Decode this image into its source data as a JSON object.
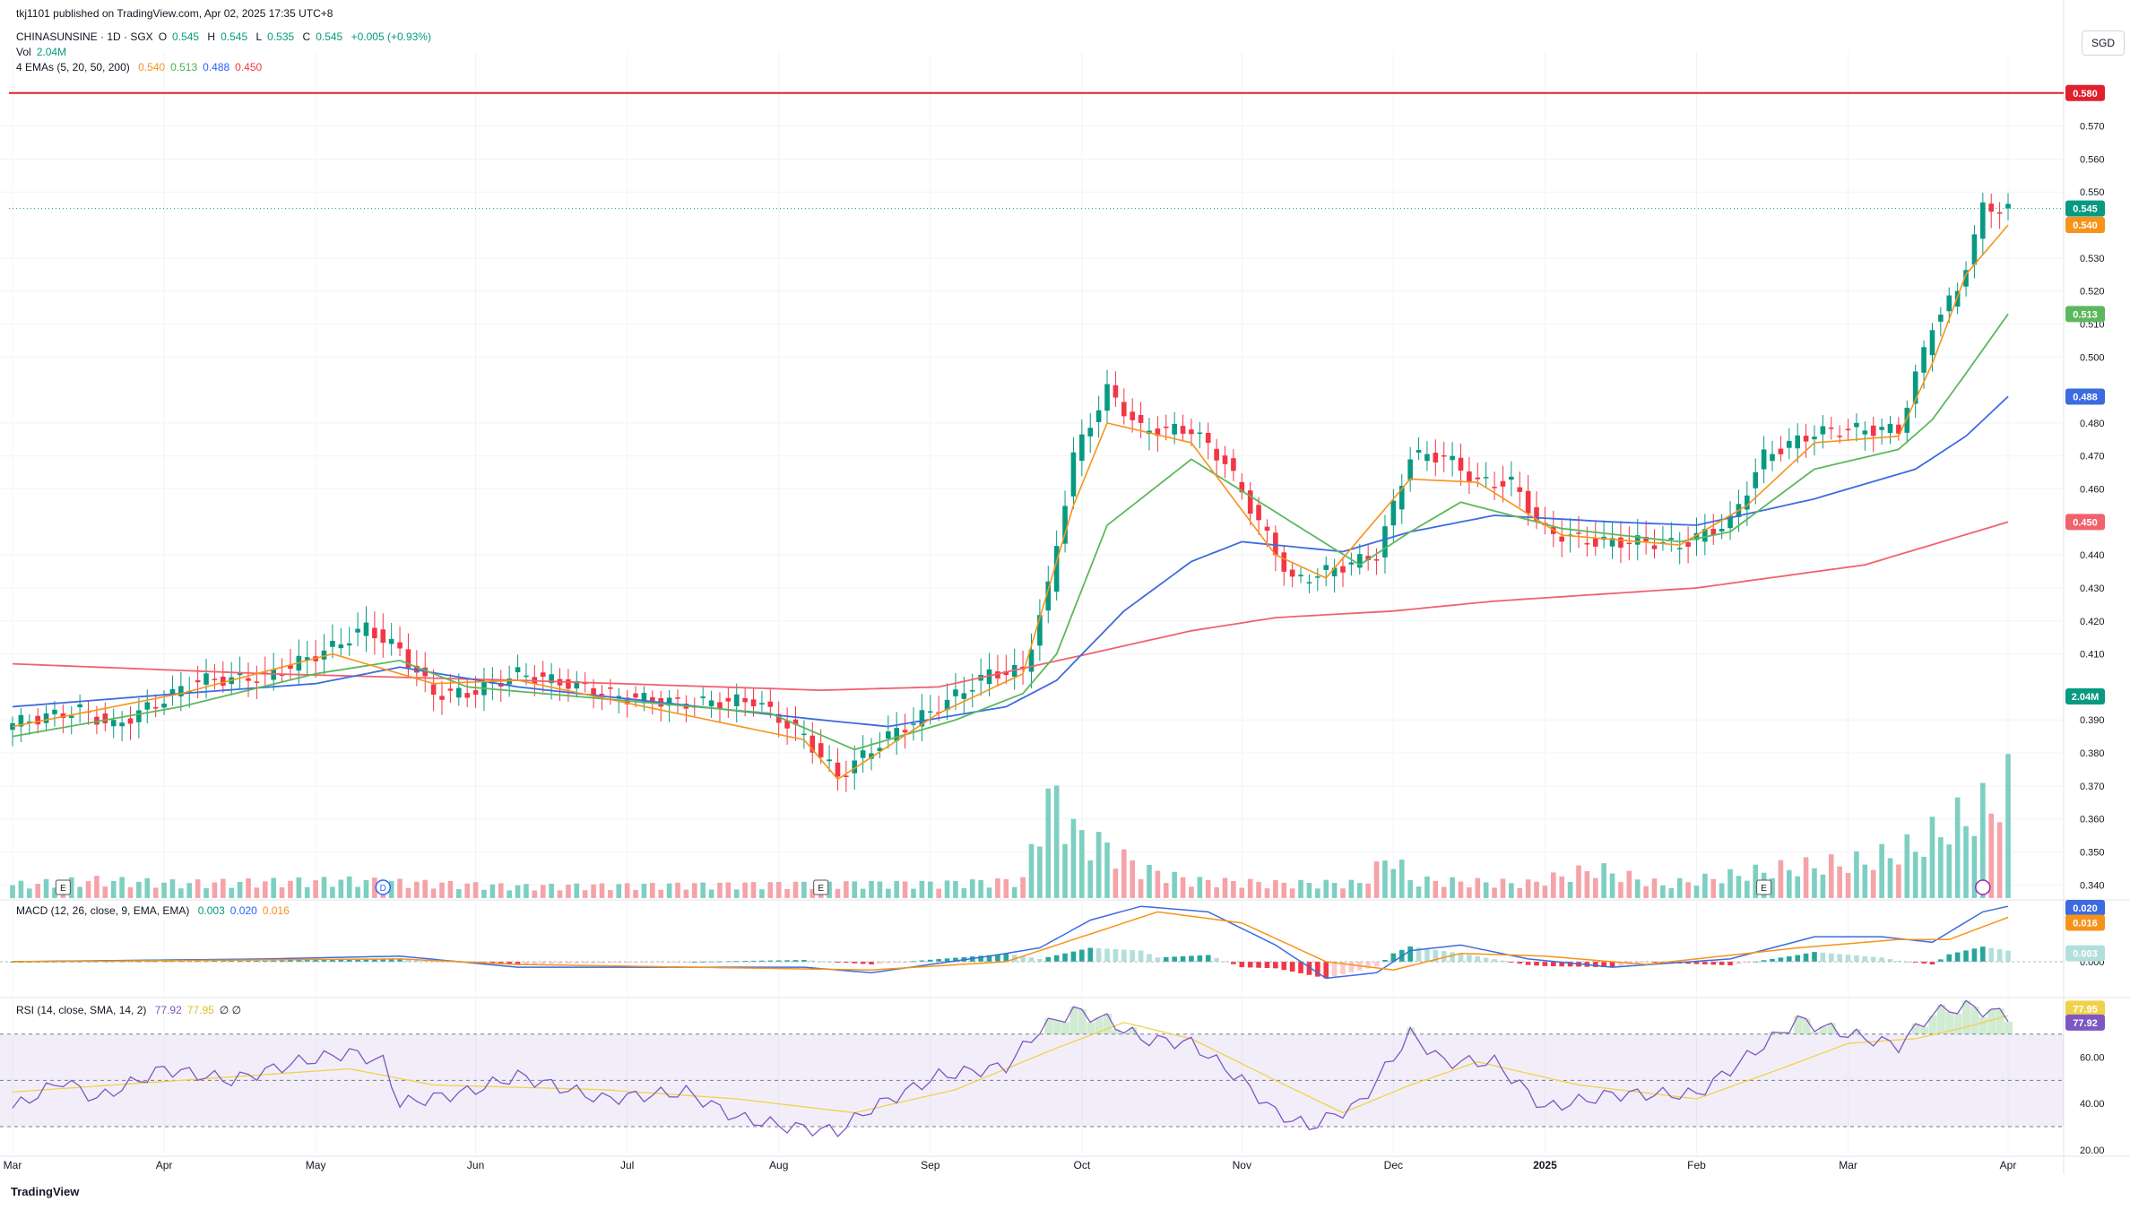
{
  "header": {
    "published": "tkj1101 published on TradingView.com, Apr 02, 2025 17:35 UTC+8",
    "symbol": "CHINASUNSINE · 1D · SGX",
    "o_label": "O",
    "o": "0.545",
    "h_label": "H",
    "h": "0.545",
    "l_label": "L",
    "l": "0.535",
    "c_label": "C",
    "c": "0.545",
    "change": "+0.005 (+0.93%)",
    "vol_label": "Vol",
    "vol": "2.04M",
    "ema_label": "4 EMAs (5, 20, 50, 200)",
    "ema5": "0.540",
    "ema20": "0.513",
    "ema50": "0.488",
    "ema200": "0.450",
    "macd_label": "MACD (12, 26, close, 9, EMA, EMA)",
    "macd_hist": "0.003",
    "macd_line": "0.020",
    "macd_signal": "0.016",
    "rsi_label": "RSI (14, close, SMA, 14, 2)",
    "rsi_val": "77.92",
    "rsi_ma": "77.95",
    "rsi_extra": "∅ ∅"
  },
  "currency": "SGD",
  "logo_text": "TradingView",
  "colors": {
    "up": "#089981",
    "down": "#f23645",
    "vol_up": "#7dcfc2",
    "vol_down": "#f5a3a8",
    "ema5": "#f7931a",
    "ema20": "#5cb85c",
    "ema50": "#3d6be0",
    "ema200": "#f0626c",
    "resistance": "#e0202c",
    "rsi": "#7e57c2",
    "rsi_ma": "#f0d24a"
  },
  "chart_data": {
    "type": "candlestick",
    "x_labels": [
      "Mar",
      "Apr",
      "May",
      "Jun",
      "Jul",
      "Aug",
      "Sep",
      "Oct",
      "Nov",
      "Dec",
      "2025",
      "Feb",
      "Mar",
      "Apr"
    ],
    "y_ticks": [
      "0.570",
      "0.560",
      "0.550",
      "0.530",
      "0.520",
      "0.510",
      "0.500",
      "0.480",
      "0.470",
      "0.460",
      "0.440",
      "0.430",
      "0.420",
      "0.410",
      "0.390",
      "0.380",
      "0.370",
      "0.360",
      "0.350",
      "0.340"
    ],
    "y_range": [
      0.336,
      0.587
    ],
    "resistance": 0.58,
    "resistance_label": "0.580",
    "price_label": "0.545",
    "ema_labels": [
      "0.540",
      "0.513",
      "0.488",
      "0.450"
    ],
    "volume_label": "2.04M",
    "price_anchors": [
      [
        0,
        0.389
      ],
      [
        8,
        0.393
      ],
      [
        12,
        0.388
      ],
      [
        22,
        0.402
      ],
      [
        30,
        0.403
      ],
      [
        38,
        0.412
      ],
      [
        42,
        0.418
      ],
      [
        46,
        0.411
      ],
      [
        50,
        0.398
      ],
      [
        54,
        0.398
      ],
      [
        60,
        0.404
      ],
      [
        66,
        0.401
      ],
      [
        72,
        0.397
      ],
      [
        80,
        0.395
      ],
      [
        88,
        0.396
      ],
      [
        94,
        0.385
      ],
      [
        98,
        0.373
      ],
      [
        104,
        0.385
      ],
      [
        110,
        0.394
      ],
      [
        116,
        0.404
      ],
      [
        120,
        0.405
      ],
      [
        123,
        0.43
      ],
      [
        126,
        0.47
      ],
      [
        130,
        0.49
      ],
      [
        134,
        0.478
      ],
      [
        140,
        0.478
      ],
      [
        144,
        0.468
      ],
      [
        148,
        0.45
      ],
      [
        152,
        0.432
      ],
      [
        156,
        0.435
      ],
      [
        162,
        0.44
      ],
      [
        166,
        0.47
      ],
      [
        170,
        0.47
      ],
      [
        174,
        0.462
      ],
      [
        178,
        0.462
      ],
      [
        182,
        0.447
      ],
      [
        188,
        0.444
      ],
      [
        194,
        0.444
      ],
      [
        198,
        0.443
      ],
      [
        204,
        0.45
      ],
      [
        208,
        0.47
      ],
      [
        214,
        0.477
      ],
      [
        218,
        0.478
      ],
      [
        224,
        0.478
      ],
      [
        228,
        0.51
      ],
      [
        231,
        0.52
      ],
      [
        234,
        0.545
      ],
      [
        237,
        0.545
      ]
    ],
    "ema5_anchors": [
      [
        0,
        0.388
      ],
      [
        20,
        0.398
      ],
      [
        38,
        0.41
      ],
      [
        50,
        0.401
      ],
      [
        60,
        0.402
      ],
      [
        94,
        0.384
      ],
      [
        98,
        0.372
      ],
      [
        110,
        0.392
      ],
      [
        120,
        0.404
      ],
      [
        126,
        0.455
      ],
      [
        130,
        0.48
      ],
      [
        140,
        0.474
      ],
      [
        150,
        0.44
      ],
      [
        156,
        0.433
      ],
      [
        166,
        0.463
      ],
      [
        174,
        0.462
      ],
      [
        184,
        0.446
      ],
      [
        198,
        0.443
      ],
      [
        206,
        0.455
      ],
      [
        214,
        0.474
      ],
      [
        224,
        0.476
      ],
      [
        228,
        0.498
      ],
      [
        232,
        0.525
      ],
      [
        237,
        0.54
      ]
    ],
    "ema20_anchors": [
      [
        0,
        0.385
      ],
      [
        20,
        0.394
      ],
      [
        36,
        0.404
      ],
      [
        46,
        0.408
      ],
      [
        54,
        0.4
      ],
      [
        90,
        0.392
      ],
      [
        100,
        0.381
      ],
      [
        112,
        0.39
      ],
      [
        120,
        0.398
      ],
      [
        124,
        0.41
      ],
      [
        130,
        0.449
      ],
      [
        140,
        0.469
      ],
      [
        150,
        0.453
      ],
      [
        160,
        0.437
      ],
      [
        166,
        0.447
      ],
      [
        172,
        0.456
      ],
      [
        184,
        0.448
      ],
      [
        198,
        0.444
      ],
      [
        204,
        0.447
      ],
      [
        214,
        0.466
      ],
      [
        224,
        0.472
      ],
      [
        228,
        0.481
      ],
      [
        232,
        0.495
      ],
      [
        237,
        0.513
      ]
    ],
    "ema50_anchors": [
      [
        0,
        0.394
      ],
      [
        20,
        0.398
      ],
      [
        36,
        0.401
      ],
      [
        46,
        0.406
      ],
      [
        60,
        0.4
      ],
      [
        96,
        0.39
      ],
      [
        104,
        0.388
      ],
      [
        118,
        0.394
      ],
      [
        124,
        0.402
      ],
      [
        132,
        0.423
      ],
      [
        140,
        0.438
      ],
      [
        146,
        0.444
      ],
      [
        158,
        0.441
      ],
      [
        166,
        0.447
      ],
      [
        176,
        0.452
      ],
      [
        190,
        0.45
      ],
      [
        200,
        0.449
      ],
      [
        214,
        0.457
      ],
      [
        226,
        0.466
      ],
      [
        232,
        0.476
      ],
      [
        237,
        0.488
      ]
    ],
    "ema200_anchors": [
      [
        0,
        0.407
      ],
      [
        30,
        0.404
      ],
      [
        60,
        0.402
      ],
      [
        96,
        0.399
      ],
      [
        110,
        0.4
      ],
      [
        126,
        0.409
      ],
      [
        140,
        0.417
      ],
      [
        150,
        0.421
      ],
      [
        164,
        0.423
      ],
      [
        176,
        0.426
      ],
      [
        200,
        0.43
      ],
      [
        220,
        0.437
      ],
      [
        237,
        0.45
      ]
    ],
    "macd_range": [
      -0.012,
      0.022
    ],
    "macd_ticks": [
      "0.000"
    ],
    "macd_anchors": [
      [
        0,
        0.0
      ],
      [
        30,
        0.001
      ],
      [
        46,
        0.002
      ],
      [
        60,
        -0.002
      ],
      [
        94,
        -0.002
      ],
      [
        102,
        -0.004
      ],
      [
        116,
        0.002
      ],
      [
        122,
        0.005
      ],
      [
        128,
        0.015
      ],
      [
        134,
        0.02
      ],
      [
        142,
        0.018
      ],
      [
        150,
        0.006
      ],
      [
        156,
        -0.006
      ],
      [
        162,
        -0.004
      ],
      [
        166,
        0.004
      ],
      [
        172,
        0.006
      ],
      [
        180,
        0.001
      ],
      [
        190,
        -0.002
      ],
      [
        204,
        0.001
      ],
      [
        214,
        0.009
      ],
      [
        222,
        0.009
      ],
      [
        228,
        0.007
      ],
      [
        234,
        0.018
      ],
      [
        237,
        0.02
      ]
    ],
    "macd_signal_anchors": [
      [
        0,
        0.0
      ],
      [
        46,
        0.001
      ],
      [
        60,
        -0.001
      ],
      [
        102,
        -0.003
      ],
      [
        118,
        0.0
      ],
      [
        126,
        0.008
      ],
      [
        136,
        0.018
      ],
      [
        146,
        0.014
      ],
      [
        156,
        0.0
      ],
      [
        164,
        -0.003
      ],
      [
        172,
        0.003
      ],
      [
        182,
        0.002
      ],
      [
        194,
        -0.001
      ],
      [
        212,
        0.005
      ],
      [
        224,
        0.008
      ],
      [
        230,
        0.008
      ],
      [
        237,
        0.016
      ]
    ],
    "rsi_range": [
      18,
      85
    ],
    "rsi_ticks": [
      "60.00",
      "40.00",
      "20.00"
    ],
    "rsi_bands": [
      70,
      50,
      30
    ],
    "rsi_anchors": [
      [
        0,
        38
      ],
      [
        6,
        50
      ],
      [
        10,
        42
      ],
      [
        18,
        55
      ],
      [
        26,
        50
      ],
      [
        34,
        58
      ],
      [
        40,
        62
      ],
      [
        44,
        58
      ],
      [
        46,
        40
      ],
      [
        54,
        45
      ],
      [
        60,
        52
      ],
      [
        70,
        42
      ],
      [
        80,
        45
      ],
      [
        86,
        34
      ],
      [
        92,
        30
      ],
      [
        98,
        28
      ],
      [
        102,
        38
      ],
      [
        110,
        52
      ],
      [
        118,
        56
      ],
      [
        122,
        72
      ],
      [
        126,
        80
      ],
      [
        130,
        76
      ],
      [
        134,
        68
      ],
      [
        140,
        66
      ],
      [
        146,
        50
      ],
      [
        150,
        36
      ],
      [
        154,
        30
      ],
      [
        160,
        40
      ],
      [
        166,
        70
      ],
      [
        170,
        58
      ],
      [
        176,
        58
      ],
      [
        182,
        38
      ],
      [
        190,
        44
      ],
      [
        200,
        44
      ],
      [
        206,
        60
      ],
      [
        212,
        76
      ],
      [
        218,
        70
      ],
      [
        224,
        65
      ],
      [
        228,
        79
      ],
      [
        232,
        82
      ],
      [
        237,
        78
      ]
    ],
    "rsi_ma_anchors": [
      [
        0,
        45
      ],
      [
        20,
        50
      ],
      [
        40,
        55
      ],
      [
        50,
        48
      ],
      [
        70,
        46
      ],
      [
        86,
        42
      ],
      [
        100,
        36
      ],
      [
        112,
        46
      ],
      [
        124,
        64
      ],
      [
        132,
        75
      ],
      [
        140,
        68
      ],
      [
        150,
        50
      ],
      [
        158,
        36
      ],
      [
        166,
        48
      ],
      [
        174,
        58
      ],
      [
        186,
        48
      ],
      [
        200,
        42
      ],
      [
        210,
        55
      ],
      [
        218,
        66
      ],
      [
        226,
        68
      ],
      [
        232,
        73
      ],
      [
        237,
        78
      ]
    ],
    "volume_anchors": [
      [
        0,
        0.09
      ],
      [
        10,
        0.12
      ],
      [
        20,
        0.1
      ],
      [
        40,
        0.12
      ],
      [
        60,
        0.08
      ],
      [
        80,
        0.09
      ],
      [
        100,
        0.1
      ],
      [
        110,
        0.1
      ],
      [
        120,
        0.12
      ],
      [
        122,
        0.55
      ],
      [
        124,
        0.7
      ],
      [
        126,
        0.45
      ],
      [
        130,
        0.35
      ],
      [
        134,
        0.2
      ],
      [
        140,
        0.12
      ],
      [
        150,
        0.1
      ],
      [
        160,
        0.1
      ],
      [
        164,
        0.3
      ],
      [
        166,
        0.12
      ],
      [
        180,
        0.1
      ],
      [
        188,
        0.2
      ],
      [
        196,
        0.09
      ],
      [
        210,
        0.2
      ],
      [
        220,
        0.25
      ],
      [
        226,
        0.35
      ],
      [
        230,
        0.5
      ],
      [
        234,
        0.6
      ],
      [
        237,
        0.75
      ]
    ]
  }
}
